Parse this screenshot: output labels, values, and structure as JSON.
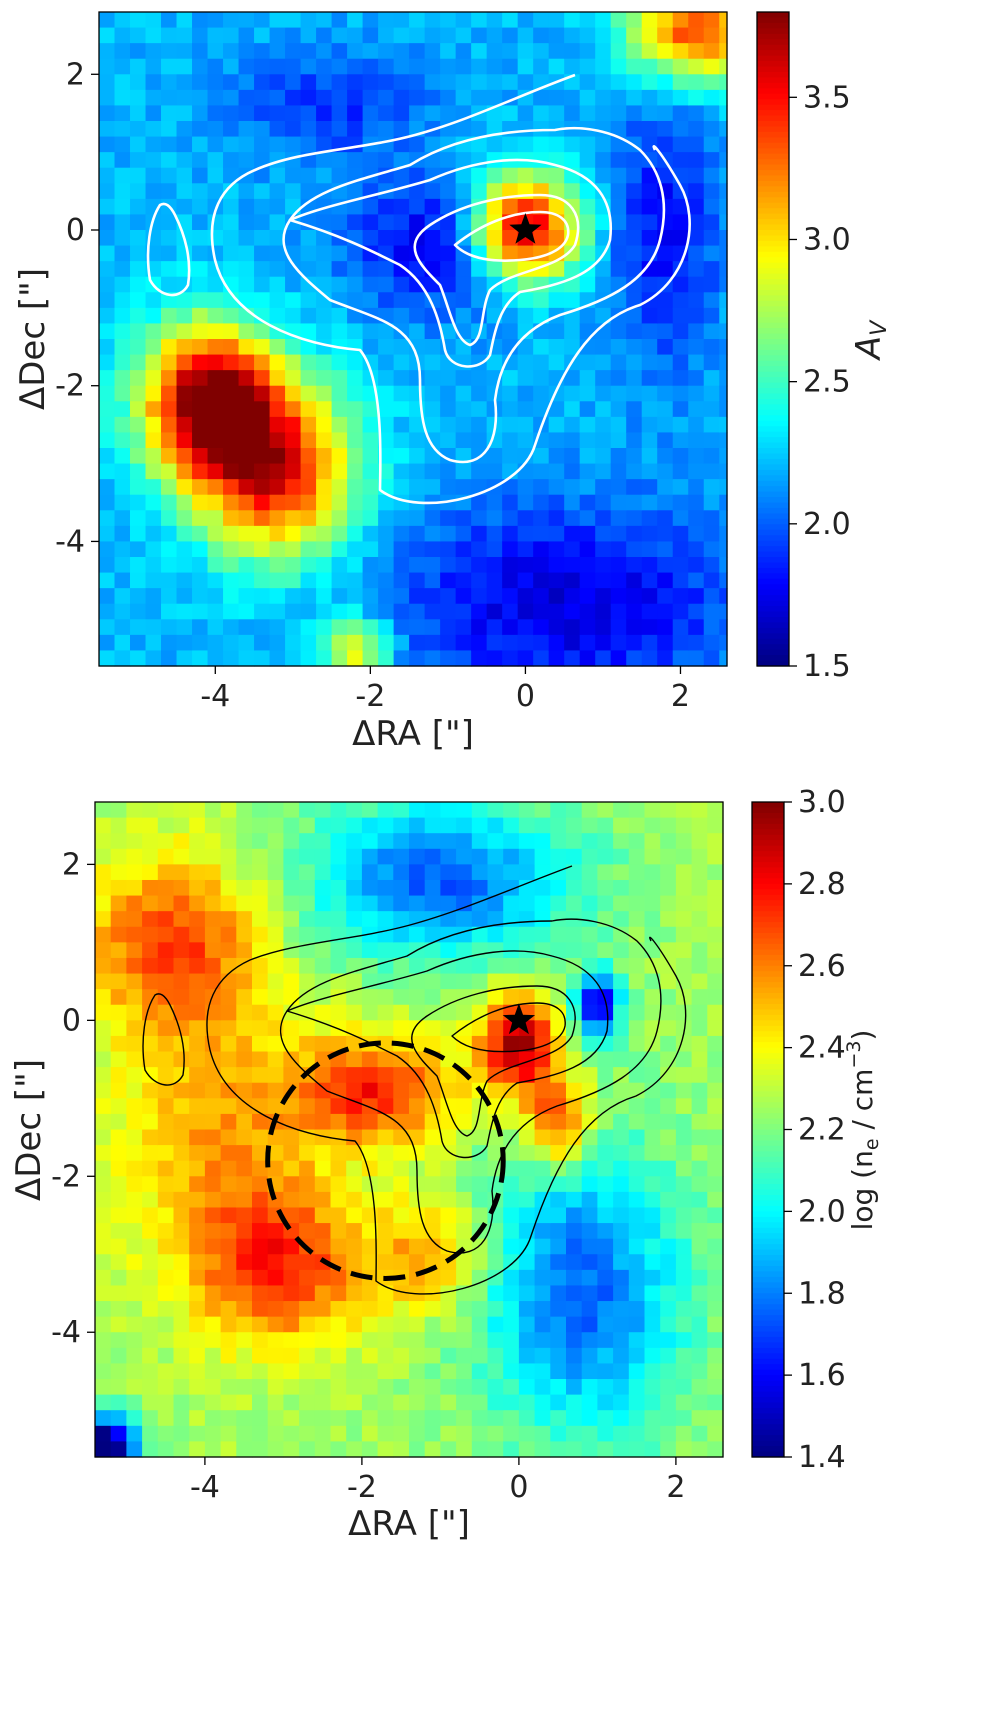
{
  "chart_data": [
    {
      "type": "heatmap",
      "xlabel": "ΔRA [\"]",
      "ylabel": "ΔDec [\"]",
      "colorbar_label": "A_V",
      "colorbar_label_main": "A",
      "colorbar_label_sub": "V",
      "colormap": "jet",
      "xlim": [
        -5.5,
        2.6
      ],
      "ylim": [
        -5.6,
        2.8
      ],
      "vmin": 1.5,
      "vmax": 3.8,
      "xticks": [
        -4,
        -2,
        0,
        2
      ],
      "xtick_labels": [
        "-4",
        "-2",
        "0",
        "2"
      ],
      "yticks": [
        -4,
        -2,
        0,
        2
      ],
      "ytick_labels": [
        "-4",
        "-2",
        "0",
        "2"
      ],
      "cbar_ticks": [
        1.5,
        2.0,
        2.5,
        3.0,
        3.5
      ],
      "cbar_tick_labels": [
        "1.5",
        "2.0",
        "2.5",
        "3.0",
        "3.5"
      ],
      "background_value": 2.2,
      "features": [
        {
          "x": 0.0,
          "y": 0.0,
          "sx": 0.5,
          "sy": 0.5,
          "amp": 1.6
        },
        {
          "x": -4.1,
          "y": -2.2,
          "sx": 0.6,
          "sy": 0.7,
          "amp": 1.6
        },
        {
          "x": -3.2,
          "y": -3.1,
          "sx": 0.7,
          "sy": 0.8,
          "amp": 1.3
        },
        {
          "x": 2.2,
          "y": 2.6,
          "sx": 0.6,
          "sy": 0.5,
          "amp": 1.2
        },
        {
          "x": -2.2,
          "y": -5.4,
          "sx": 0.3,
          "sy": 0.3,
          "amp": 0.8
        },
        {
          "x": -1.0,
          "y": -0.2,
          "sx": 0.9,
          "sy": 0.6,
          "amp": -0.5
        },
        {
          "x": 0.5,
          "y": -4.8,
          "sx": 1.6,
          "sy": 0.9,
          "amp": -0.5
        },
        {
          "x": 1.8,
          "y": 0.0,
          "sx": 0.5,
          "sy": 1.3,
          "amp": -0.4
        },
        {
          "x": -2.5,
          "y": 1.6,
          "sx": 0.9,
          "sy": 0.5,
          "amp": -0.3
        }
      ],
      "contour_color": "#ffffff",
      "star": {
        "x": 0.0,
        "y": 0.0
      }
    },
    {
      "type": "heatmap",
      "xlabel": "ΔRA [\"]",
      "ylabel": "ΔDec [\"]",
      "colorbar_label": "log (n_e / cm^-3)",
      "colorbar_label_a": "log (n",
      "colorbar_label_sub": "e",
      "colorbar_label_b": " / cm",
      "colorbar_label_sup": "−3",
      "colorbar_label_c": ")",
      "colormap": "jet",
      "xlim": [
        -5.4,
        2.6
      ],
      "ylim": [
        -5.6,
        2.8
      ],
      "vmin": 1.4,
      "vmax": 3.0,
      "xticks": [
        -4,
        -2,
        0,
        2
      ],
      "xtick_labels": [
        "-4",
        "-2",
        "0",
        "2"
      ],
      "yticks": [
        -4,
        -2,
        0,
        2
      ],
      "ytick_labels": [
        "-4",
        "-2",
        "0",
        "2"
      ],
      "cbar_ticks": [
        1.4,
        1.6,
        1.8,
        2.0,
        2.2,
        2.4,
        2.6,
        2.8,
        3.0
      ],
      "cbar_tick_labels": [
        "1.4",
        "1.6",
        "1.8",
        "2.0",
        "2.2",
        "2.4",
        "2.6",
        "2.8",
        "3.0"
      ],
      "background_value": 2.25,
      "features": [
        {
          "x": -4.4,
          "y": 1.0,
          "sx": 0.8,
          "sy": 0.8,
          "amp": 0.45
        },
        {
          "x": -1.8,
          "y": -0.9,
          "sx": 0.7,
          "sy": 0.5,
          "amp": 0.5
        },
        {
          "x": -3.0,
          "y": -3.2,
          "sx": 0.8,
          "sy": 0.7,
          "amp": 0.45
        },
        {
          "x": -3.8,
          "y": -1.5,
          "sx": 0.9,
          "sy": 1.2,
          "amp": 0.3
        },
        {
          "x": 0.0,
          "y": -0.3,
          "sx": 0.35,
          "sy": 0.45,
          "amp": 0.7
        },
        {
          "x": 0.5,
          "y": -1.3,
          "sx": 0.3,
          "sy": 0.4,
          "amp": 0.5
        },
        {
          "x": -1.1,
          "y": -3.0,
          "sx": 0.5,
          "sy": 0.5,
          "amp": 0.3
        },
        {
          "x": -1.0,
          "y": 1.8,
          "sx": 1.2,
          "sy": 0.7,
          "amp": -0.5
        },
        {
          "x": 0.8,
          "y": -3.5,
          "sx": 0.9,
          "sy": 1.3,
          "amp": -0.5
        },
        {
          "x": 1.0,
          "y": 0.2,
          "sx": 0.2,
          "sy": 0.3,
          "amp": -0.7
        },
        {
          "x": -5.3,
          "y": -5.5,
          "sx": 0.3,
          "sy": 0.3,
          "amp": -1.0
        }
      ],
      "contour_color": "#000000",
      "circle": {
        "x": -1.7,
        "y": -1.8,
        "r": 1.5
      },
      "star": {
        "x": 0.0,
        "y": 0.0
      }
    }
  ]
}
